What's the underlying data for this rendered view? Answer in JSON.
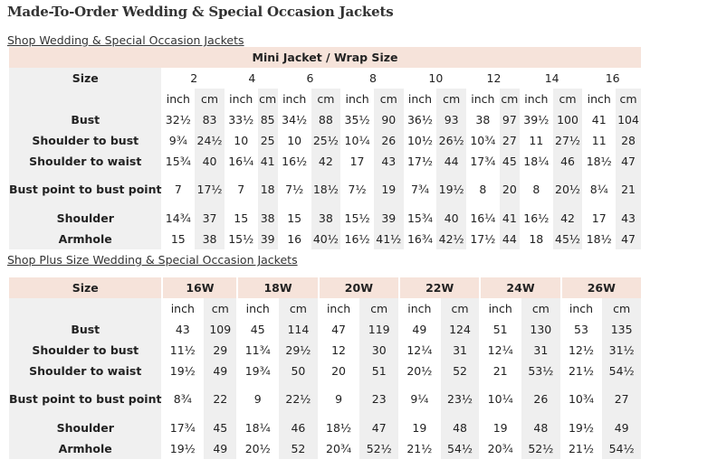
{
  "page": {
    "title": "Made-To-Order Wedding & Special Occasion Jackets",
    "link_regular": "Shop Wedding & Special Occasion Jackets",
    "link_plus": "Shop Plus Size Wedding & Special Occasion Jackets"
  },
  "colors": {
    "caption_bg": "#f6e3da",
    "label_bg": "#f0f0f0",
    "alt_col_bg": "#efefef"
  },
  "table1": {
    "caption": "Mini Jacket / Wrap Size",
    "size_label": "Size",
    "sizes": [
      "2",
      "4",
      "6",
      "8",
      "10",
      "12",
      "14",
      "16"
    ],
    "unit_inch": "inch",
    "unit_cm": "cm",
    "rows": [
      {
        "label": "Bust",
        "values": [
          "32½",
          "83",
          "33½",
          "85",
          "34½",
          "88",
          "35½",
          "90",
          "36½",
          "93",
          "38",
          "97",
          "39½",
          "100",
          "41",
          "104"
        ]
      },
      {
        "label": "Shoulder to bust",
        "values": [
          "9¾",
          "24½",
          "10",
          "25",
          "10",
          "25½",
          "10¼",
          "26",
          "10½",
          "26½",
          "10¾",
          "27",
          "11",
          "27½",
          "11",
          "28"
        ]
      },
      {
        "label": "Shoulder to waist",
        "values": [
          "15¾",
          "40",
          "16¼",
          "41",
          "16½",
          "42",
          "17",
          "43",
          "17½",
          "44",
          "17¾",
          "45",
          "18¼",
          "46",
          "18½",
          "47"
        ]
      },
      {
        "label": "Bust point to bust point",
        "values": [
          "7",
          "17½",
          "7",
          "18",
          "7½",
          "18½",
          "7½",
          "19",
          "7¾",
          "19½",
          "8",
          "20",
          "8",
          "20½",
          "8¼",
          "21"
        ]
      },
      {
        "label": "Shoulder",
        "values": [
          "14¾",
          "37",
          "15",
          "38",
          "15",
          "38",
          "15½",
          "39",
          "15¾",
          "40",
          "16¼",
          "41",
          "16½",
          "42",
          "17",
          "43"
        ]
      },
      {
        "label": "Armhole",
        "values": [
          "15",
          "38",
          "15½",
          "39",
          "16",
          "40½",
          "16½",
          "41½",
          "16¾",
          "42½",
          "17½",
          "44",
          "18",
          "45½",
          "18½",
          "47"
        ]
      }
    ]
  },
  "table2": {
    "size_label": "Size",
    "sizes": [
      "16W",
      "18W",
      "20W",
      "22W",
      "24W",
      "26W"
    ],
    "unit_inch": "inch",
    "unit_cm": "cm",
    "rows": [
      {
        "label": "Bust",
        "values": [
          "43",
          "109",
          "45",
          "114",
          "47",
          "119",
          "49",
          "124",
          "51",
          "130",
          "53",
          "135"
        ]
      },
      {
        "label": "Shoulder to bust",
        "values": [
          "11½",
          "29",
          "11¾",
          "29½",
          "12",
          "30",
          "12¼",
          "31",
          "12¼",
          "31",
          "12½",
          "31½"
        ]
      },
      {
        "label": "Shoulder to waist",
        "values": [
          "19½",
          "49",
          "19¾",
          "50",
          "20",
          "51",
          "20½",
          "52",
          "21",
          "53½",
          "21½",
          "54½"
        ]
      },
      {
        "label": "Bust point to bust point",
        "values": [
          "8¾",
          "22",
          "9",
          "22½",
          "9",
          "23",
          "9¼",
          "23½",
          "10¼",
          "26",
          "10¾",
          "27"
        ]
      },
      {
        "label": "Shoulder",
        "values": [
          "17¾",
          "45",
          "18¼",
          "46",
          "18½",
          "47",
          "19",
          "48",
          "19",
          "48",
          "19½",
          "49"
        ]
      },
      {
        "label": "Armhole",
        "values": [
          "19½",
          "49",
          "20½",
          "52",
          "20¾",
          "52½",
          "21½",
          "54½",
          "20¾",
          "52½",
          "21½",
          "54½"
        ]
      }
    ]
  }
}
